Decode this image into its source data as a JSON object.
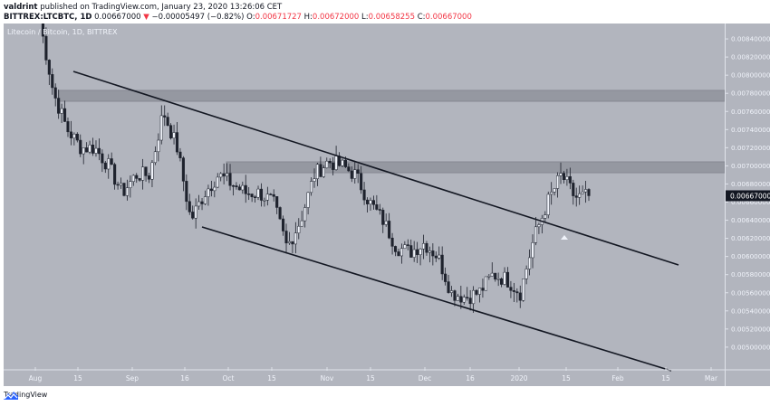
{
  "header": {
    "author": "valdrint",
    "published_text": "published on TradingView.com, January 23, 2020 13:26:06 CET",
    "symbol": "BITTREX:LTCBTC, 1D",
    "last_price": "0.00667000",
    "change_arrow": "▼",
    "change": "−0.00005497 (−0.82%)",
    "open_label": "O:",
    "open": "0.00671727",
    "high_label": "H:",
    "high": "0.00672000",
    "low_label": "L:",
    "low": "0.00658255",
    "close_label": "C:",
    "close": "0.00667000"
  },
  "chart": {
    "title": "Litecoin / Bitcoin, 1D, BITTREX",
    "price_label": "0.00667000",
    "colors": {
      "background": "#b2b5be",
      "up_candle": "#f0f3fa",
      "down_candle": "#1e222d",
      "trendline": "#131722",
      "zone": "#9598a1",
      "down_text": "#f23645"
    }
  },
  "footer": {
    "brand": "TradingView"
  },
  "chart_data": {
    "type": "candlestick",
    "title": "Litecoin / Bitcoin, 1D, BITTREX",
    "xlabel": "",
    "ylabel": "",
    "x_ticks": [
      "Aug",
      "15",
      "Sep",
      "16",
      "Oct",
      "15",
      "Nov",
      "15",
      "Dec",
      "16",
      "2020",
      "15",
      "Feb",
      "15",
      "Mar"
    ],
    "y_ticks": [
      "0.00860000",
      "0.00840000",
      "0.00820000",
      "0.00800000",
      "0.00780000",
      "0.00760000",
      "0.00740000",
      "0.00720000",
      "0.00700000",
      "0.00680000",
      "0.00660000",
      "0.00640000",
      "0.00620000",
      "0.00600000",
      "0.00580000",
      "0.00560000",
      "0.00540000",
      "0.00520000",
      "0.00500000"
    ],
    "ylim": [
      0.0049,
      0.0087
    ],
    "grid": false,
    "last_price": 0.00667,
    "annotations": [
      {
        "type": "resistance_zone",
        "from": 0.00776,
        "to": 0.00788,
        "start": "Aug 5"
      },
      {
        "type": "resistance_zone",
        "from": 0.00699,
        "to": 0.00711,
        "start": "Sep 28"
      },
      {
        "type": "descending_trendline",
        "from": {
          "date": "Aug 12",
          "price": 0.0081
        },
        "to": {
          "date": "Feb 20",
          "price": 0.006
        }
      },
      {
        "type": "descending_trendline",
        "from": {
          "date": "Sep 21",
          "price": 0.00642
        },
        "to": {
          "date": "Feb 17",
          "price": 0.0049
        }
      },
      {
        "type": "arrow_up",
        "date": "Jan 15",
        "price": 0.0063
      }
    ],
    "series": [
      {
        "name": "LTCBTC close (approx.)",
        "x": [
          "Aug 1",
          "Aug 5",
          "Aug 10",
          "Aug 15",
          "Aug 20",
          "Aug 25",
          "Sep 1",
          "Sep 5",
          "Sep 10",
          "Sep 16",
          "Sep 20",
          "Sep 22",
          "Sep 25",
          "Oct 1",
          "Oct 5",
          "Oct 10",
          "Oct 15",
          "Oct 20",
          "Oct 25",
          "Nov 1",
          "Nov 5",
          "Nov 8",
          "Nov 10",
          "Nov 15",
          "Nov 20",
          "Nov 25",
          "Dec 1",
          "Dec 5",
          "Dec 10",
          "Dec 15",
          "Dec 16",
          "Dec 20",
          "Dec 25",
          "Jan 1",
          "Jan 5",
          "Jan 8",
          "Jan 10",
          "Jan 14",
          "Jan 17",
          "Jan 20",
          "Jan 23"
        ],
        "values": [
          0.0086,
          0.0078,
          0.0074,
          0.0072,
          0.0072,
          0.007,
          0.0067,
          0.0069,
          0.0069,
          0.0076,
          0.0072,
          0.0064,
          0.0067,
          0.0069,
          0.0068,
          0.0067,
          0.0067,
          0.0066,
          0.0061,
          0.0064,
          0.0069,
          0.00705,
          0.007,
          0.0069,
          0.0066,
          0.0064,
          0.0061,
          0.00605,
          0.00615,
          0.006,
          0.0056,
          0.00555,
          0.0056,
          0.0058,
          0.00575,
          0.0056,
          0.0062,
          0.0066,
          0.0069,
          0.00665,
          0.00667
        ]
      }
    ]
  }
}
